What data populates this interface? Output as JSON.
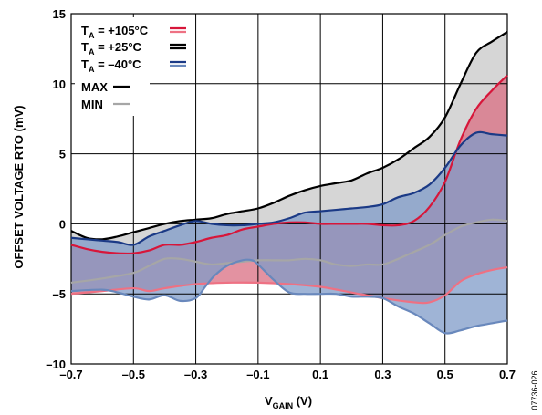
{
  "chart_data": {
    "type": "area",
    "xlabel_main": "V",
    "xlabel_sub": "GAIN",
    "xlabel_unit": " (V)",
    "ylabel": "OFFSET VOLTAGE RTO (mV)",
    "xlim": [
      -0.7,
      0.7
    ],
    "ylim": [
      -10,
      15
    ],
    "x_ticks": [
      -0.7,
      -0.5,
      -0.3,
      -0.1,
      0.1,
      0.3,
      0.5,
      0.7
    ],
    "x_tick_labels": [
      "–0.7",
      "–0.5",
      "–0.3",
      "–0.1",
      "0.1",
      "0.3",
      "0.5",
      "0.7"
    ],
    "y_ticks": [
      -10,
      -5,
      0,
      5,
      10,
      15
    ],
    "y_tick_labels": [
      "–10",
      "–5",
      "0",
      "5",
      "10",
      "15"
    ],
    "grid": true,
    "figure_id": "07736-026",
    "series": [
      {
        "name_main": "T",
        "name_sub": "A",
        "name_rest": " = +25°C",
        "key": "t25",
        "line_color": "#000000",
        "min_color": "#a6a6a6",
        "fill_color": "#c8c8c8",
        "max": {
          "x": [
            -0.7,
            -0.65,
            -0.6,
            -0.55,
            -0.5,
            -0.45,
            -0.4,
            -0.35,
            -0.3,
            -0.25,
            -0.2,
            -0.15,
            -0.1,
            -0.05,
            0,
            0.05,
            0.1,
            0.15,
            0.2,
            0.25,
            0.3,
            0.35,
            0.4,
            0.45,
            0.5,
            0.55,
            0.6,
            0.65,
            0.7
          ],
          "y": [
            -0.5,
            -1.0,
            -1.1,
            -0.9,
            -0.6,
            -0.3,
            0.0,
            0.2,
            0.3,
            0.4,
            0.7,
            0.9,
            1.1,
            1.5,
            2.0,
            2.4,
            2.7,
            2.9,
            3.1,
            3.6,
            4.0,
            4.6,
            5.4,
            6.2,
            7.6,
            10.0,
            12.2,
            13.0,
            13.7
          ]
        },
        "min": {
          "x": [
            -0.7,
            -0.6,
            -0.5,
            -0.45,
            -0.4,
            -0.35,
            -0.3,
            -0.25,
            -0.2,
            -0.15,
            -0.1,
            -0.05,
            0,
            0.05,
            0.1,
            0.15,
            0.2,
            0.25,
            0.3,
            0.35,
            0.4,
            0.45,
            0.5,
            0.55,
            0.6,
            0.65,
            0.7
          ],
          "y": [
            -4.2,
            -3.9,
            -3.5,
            -3.0,
            -2.5,
            -2.5,
            -2.7,
            -2.9,
            -2.8,
            -2.7,
            -2.6,
            -2.6,
            -2.6,
            -2.5,
            -2.6,
            -2.9,
            -3.0,
            -2.9,
            -2.9,
            -2.5,
            -2.0,
            -1.5,
            -0.8,
            -0.2,
            0.1,
            0.3,
            0.2
          ]
        }
      },
      {
        "name_main": "T",
        "name_sub": "A",
        "name_rest": " = +105°C",
        "key": "t105",
        "line_color": "#d7163a",
        "min_color": "#ee7183",
        "fill_color": "#d96e81",
        "max": {
          "x": [
            -0.7,
            -0.65,
            -0.6,
            -0.55,
            -0.5,
            -0.45,
            -0.4,
            -0.35,
            -0.3,
            -0.25,
            -0.2,
            -0.15,
            -0.1,
            -0.05,
            0,
            0.05,
            0.1,
            0.15,
            0.2,
            0.25,
            0.3,
            0.35,
            0.4,
            0.45,
            0.5,
            0.55,
            0.6,
            0.65,
            0.7
          ],
          "y": [
            -1.5,
            -1.8,
            -2.0,
            -2.1,
            -2.1,
            -1.9,
            -1.5,
            -1.5,
            -1.3,
            -1.0,
            -0.8,
            -0.4,
            -0.2,
            0.0,
            0.1,
            0.1,
            0.0,
            0.0,
            0.0,
            0.0,
            -0.1,
            -0.1,
            0.2,
            1.2,
            3.0,
            6.0,
            8.2,
            9.5,
            10.6
          ]
        },
        "min": {
          "x": [
            -0.7,
            -0.6,
            -0.5,
            -0.45,
            -0.4,
            -0.3,
            -0.2,
            -0.1,
            0,
            0.1,
            0.2,
            0.3,
            0.4,
            0.45,
            0.5,
            0.55,
            0.6,
            0.65,
            0.7
          ],
          "y": [
            -5.0,
            -4.8,
            -4.6,
            -4.8,
            -4.6,
            -4.3,
            -4.2,
            -4.2,
            -4.3,
            -4.5,
            -4.9,
            -5.3,
            -5.6,
            -5.6,
            -5.1,
            -4.1,
            -3.6,
            -3.3,
            -3.1
          ]
        }
      },
      {
        "name_main": "T",
        "name_sub": "A",
        "name_rest": " = –40°C",
        "key": "tm40",
        "line_color": "#1b3a86",
        "min_color": "#6988bc",
        "fill_color": "#7f9bc8",
        "max": {
          "x": [
            -0.7,
            -0.65,
            -0.6,
            -0.55,
            -0.5,
            -0.45,
            -0.4,
            -0.35,
            -0.3,
            -0.25,
            -0.2,
            -0.15,
            -0.1,
            -0.05,
            0,
            0.05,
            0.1,
            0.15,
            0.2,
            0.25,
            0.3,
            0.35,
            0.4,
            0.45,
            0.5,
            0.55,
            0.6,
            0.65,
            0.7
          ],
          "y": [
            -1.0,
            -1.1,
            -1.2,
            -1.3,
            -1.5,
            -0.9,
            -0.5,
            -0.1,
            0.2,
            0.0,
            -0.1,
            -0.1,
            0.0,
            0.1,
            0.4,
            0.8,
            0.9,
            1.0,
            1.1,
            1.2,
            1.4,
            1.9,
            2.2,
            2.8,
            4.0,
            5.6,
            6.5,
            6.4,
            6.3
          ]
        },
        "min": {
          "x": [
            -0.7,
            -0.6,
            -0.55,
            -0.5,
            -0.45,
            -0.4,
            -0.35,
            -0.3,
            -0.27,
            -0.24,
            -0.2,
            -0.15,
            -0.12,
            -0.1,
            -0.05,
            0,
            0.05,
            0.1,
            0.15,
            0.2,
            0.25,
            0.3,
            0.35,
            0.4,
            0.45,
            0.5,
            0.55,
            0.6,
            0.65,
            0.7
          ],
          "y": [
            -4.8,
            -4.7,
            -4.9,
            -5.2,
            -5.4,
            -5.1,
            -5.5,
            -5.3,
            -4.5,
            -3.7,
            -3.0,
            -2.6,
            -2.6,
            -2.9,
            -4.0,
            -4.9,
            -5.0,
            -5.0,
            -5.0,
            -5.2,
            -5.2,
            -5.3,
            -5.9,
            -6.4,
            -7.1,
            -7.8,
            -7.6,
            -7.3,
            -7.1,
            -6.9
          ]
        }
      }
    ],
    "legend": [
      {
        "key": "t105",
        "label_main": "T",
        "label_sub": "A",
        "label_rest": " = +105°C",
        "color": "#d7163a",
        "color2": "#ee7183"
      },
      {
        "key": "t25",
        "label_main": "T",
        "label_sub": "A",
        "label_rest": " = +25°C",
        "color": "#000000",
        "color2": "#000000"
      },
      {
        "key": "tm40",
        "label_main": "T",
        "label_sub": "A",
        "label_rest": " = –40°C",
        "color": "#1b3a86",
        "color2": "#6988bc"
      },
      {
        "key": "max",
        "label_main": "MAX",
        "label_sub": "",
        "label_rest": "",
        "color": "#000000",
        "color2": ""
      },
      {
        "key": "min",
        "label_main": "MIN",
        "label_sub": "",
        "label_rest": "",
        "color": "#a6a6a6",
        "color2": ""
      }
    ]
  }
}
